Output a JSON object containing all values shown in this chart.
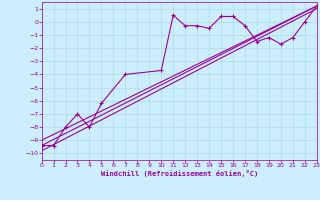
{
  "xlabel": "Windchill (Refroidissement éolien,°C)",
  "bg_color": "#cceeff",
  "line_color": "#990099",
  "grid_color": "#aadddd",
  "xlim": [
    0,
    23
  ],
  "ylim": [
    -10.5,
    1.5
  ],
  "xticks": [
    0,
    1,
    2,
    3,
    4,
    5,
    6,
    7,
    8,
    9,
    10,
    11,
    12,
    13,
    14,
    15,
    16,
    17,
    18,
    19,
    20,
    21,
    22,
    23
  ],
  "yticks": [
    1,
    0,
    -1,
    -2,
    -3,
    -4,
    -5,
    -6,
    -7,
    -8,
    -9,
    -10
  ],
  "series1_x": [
    0,
    1,
    2,
    3,
    4,
    5,
    7,
    10,
    11,
    12,
    13,
    14,
    15,
    16,
    17,
    18,
    19,
    20,
    21,
    22,
    23
  ],
  "series1_y": [
    -9.4,
    -9.4,
    -8.0,
    -7.0,
    -8.0,
    -6.2,
    -4.0,
    -3.7,
    0.5,
    -0.3,
    -0.3,
    -0.5,
    0.4,
    0.4,
    -0.3,
    -1.5,
    -1.2,
    -1.7,
    -1.2,
    0.0,
    1.2
  ],
  "series2_x": [
    0,
    23
  ],
  "series2_y": [
    -9.4,
    1.2
  ],
  "series3_x": [
    0,
    23
  ],
  "series3_y": [
    -9.0,
    1.2
  ],
  "series4_x": [
    0,
    23
  ],
  "series4_y": [
    -9.8,
    1.0
  ]
}
